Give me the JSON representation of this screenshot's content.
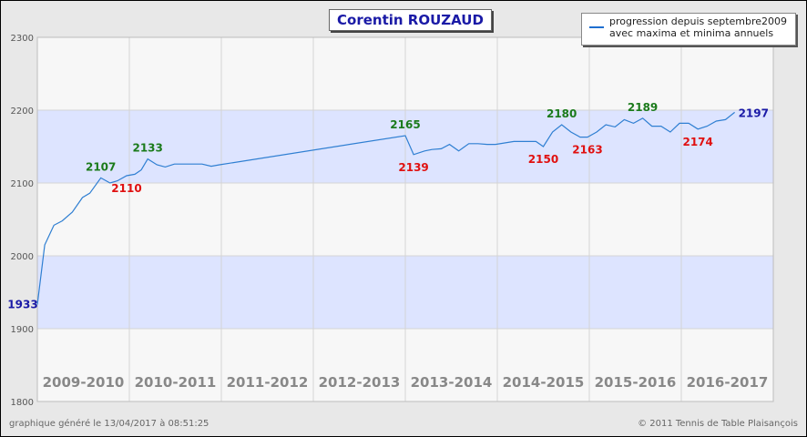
{
  "chart_data": {
    "type": "line",
    "title": "Corentin ROUZAUD",
    "legend": {
      "placement": "top-right",
      "lines": [
        "progression depuis septembre2009",
        "avec maxima et minima annuels"
      ]
    },
    "y_axis": {
      "range": [
        1800,
        2300
      ],
      "ticks": [
        1800,
        1900,
        2000,
        2100,
        2200,
        2300
      ]
    },
    "bands": [
      [
        1900,
        2000
      ],
      [
        2100,
        2200
      ]
    ],
    "seasons": [
      "2009-2010",
      "2010-2011",
      "2011-2012",
      "2012-2013",
      "2013-2014",
      "2014-2015",
      "2015-2016",
      "2016-2017"
    ],
    "season_x_range": [
      0,
      8
    ],
    "grid": true,
    "series": [
      {
        "color": "#2f7fd2",
        "points": [
          [
            0.0,
            1933
          ],
          [
            0.08,
            2015
          ],
          [
            0.18,
            2042
          ],
          [
            0.27,
            2048
          ],
          [
            0.38,
            2060
          ],
          [
            0.49,
            2080
          ],
          [
            0.57,
            2086
          ],
          [
            0.69,
            2107
          ],
          [
            0.79,
            2100
          ],
          [
            0.87,
            2103
          ],
          [
            0.97,
            2110
          ],
          [
            1.06,
            2112
          ],
          [
            1.13,
            2118
          ],
          [
            1.2,
            2133
          ],
          [
            1.3,
            2125
          ],
          [
            1.39,
            2122
          ],
          [
            1.49,
            2126
          ],
          [
            1.79,
            2126
          ],
          [
            1.89,
            2123
          ],
          [
            1.98,
            2125
          ],
          [
            4.0,
            2165
          ],
          [
            4.09,
            2139
          ],
          [
            4.21,
            2144
          ],
          [
            4.29,
            2146
          ],
          [
            4.39,
            2147
          ],
          [
            4.48,
            2153
          ],
          [
            4.58,
            2144
          ],
          [
            4.69,
            2154
          ],
          [
            4.79,
            2154
          ],
          [
            4.89,
            2153
          ],
          [
            4.98,
            2153
          ],
          [
            5.18,
            2157
          ],
          [
            5.42,
            2157
          ],
          [
            5.5,
            2150
          ],
          [
            5.6,
            2170
          ],
          [
            5.7,
            2180
          ],
          [
            5.8,
            2170
          ],
          [
            5.9,
            2163
          ],
          [
            5.98,
            2163
          ],
          [
            6.08,
            2170
          ],
          [
            6.18,
            2180
          ],
          [
            6.28,
            2177
          ],
          [
            6.38,
            2187
          ],
          [
            6.48,
            2182
          ],
          [
            6.58,
            2189
          ],
          [
            6.68,
            2178
          ],
          [
            6.78,
            2178
          ],
          [
            6.88,
            2170
          ],
          [
            6.98,
            2182
          ],
          [
            7.08,
            2182
          ],
          [
            7.18,
            2174
          ],
          [
            7.28,
            2178
          ],
          [
            7.38,
            2185
          ],
          [
            7.48,
            2187
          ],
          [
            7.58,
            2197
          ]
        ]
      }
    ],
    "annotations": [
      {
        "text": "1933",
        "x": 0.0,
        "y": 1933,
        "kind": "start",
        "color": "#1a1aa6"
      },
      {
        "text": "2107",
        "x": 0.69,
        "y": 2107,
        "kind": "max",
        "color": "#1a7a1a"
      },
      {
        "text": "2110",
        "x": 0.97,
        "y": 2110,
        "kind": "min",
        "color": "#e01010"
      },
      {
        "text": "2133",
        "x": 1.2,
        "y": 2133,
        "kind": "max",
        "color": "#1a7a1a"
      },
      {
        "text": "2165",
        "x": 4.0,
        "y": 2165,
        "kind": "max",
        "color": "#1a7a1a"
      },
      {
        "text": "2139",
        "x": 4.09,
        "y": 2139,
        "kind": "min",
        "color": "#e01010"
      },
      {
        "text": "2180",
        "x": 5.7,
        "y": 2180,
        "kind": "max",
        "color": "#1a7a1a"
      },
      {
        "text": "2150",
        "x": 5.5,
        "y": 2150,
        "kind": "min",
        "color": "#e01010"
      },
      {
        "text": "2163",
        "x": 5.98,
        "y": 2163,
        "kind": "min",
        "color": "#e01010"
      },
      {
        "text": "2189",
        "x": 6.58,
        "y": 2189,
        "kind": "max",
        "color": "#1a7a1a"
      },
      {
        "text": "2174",
        "x": 7.18,
        "y": 2174,
        "kind": "min",
        "color": "#e01010"
      },
      {
        "text": "2197",
        "x": 7.58,
        "y": 2197,
        "kind": "end",
        "color": "#1a1aa6"
      }
    ]
  },
  "footer": {
    "left": "graphique généré le 13/04/2017 à 08:51:25",
    "right": "© 2011 Tennis de Table Plaisançois"
  }
}
